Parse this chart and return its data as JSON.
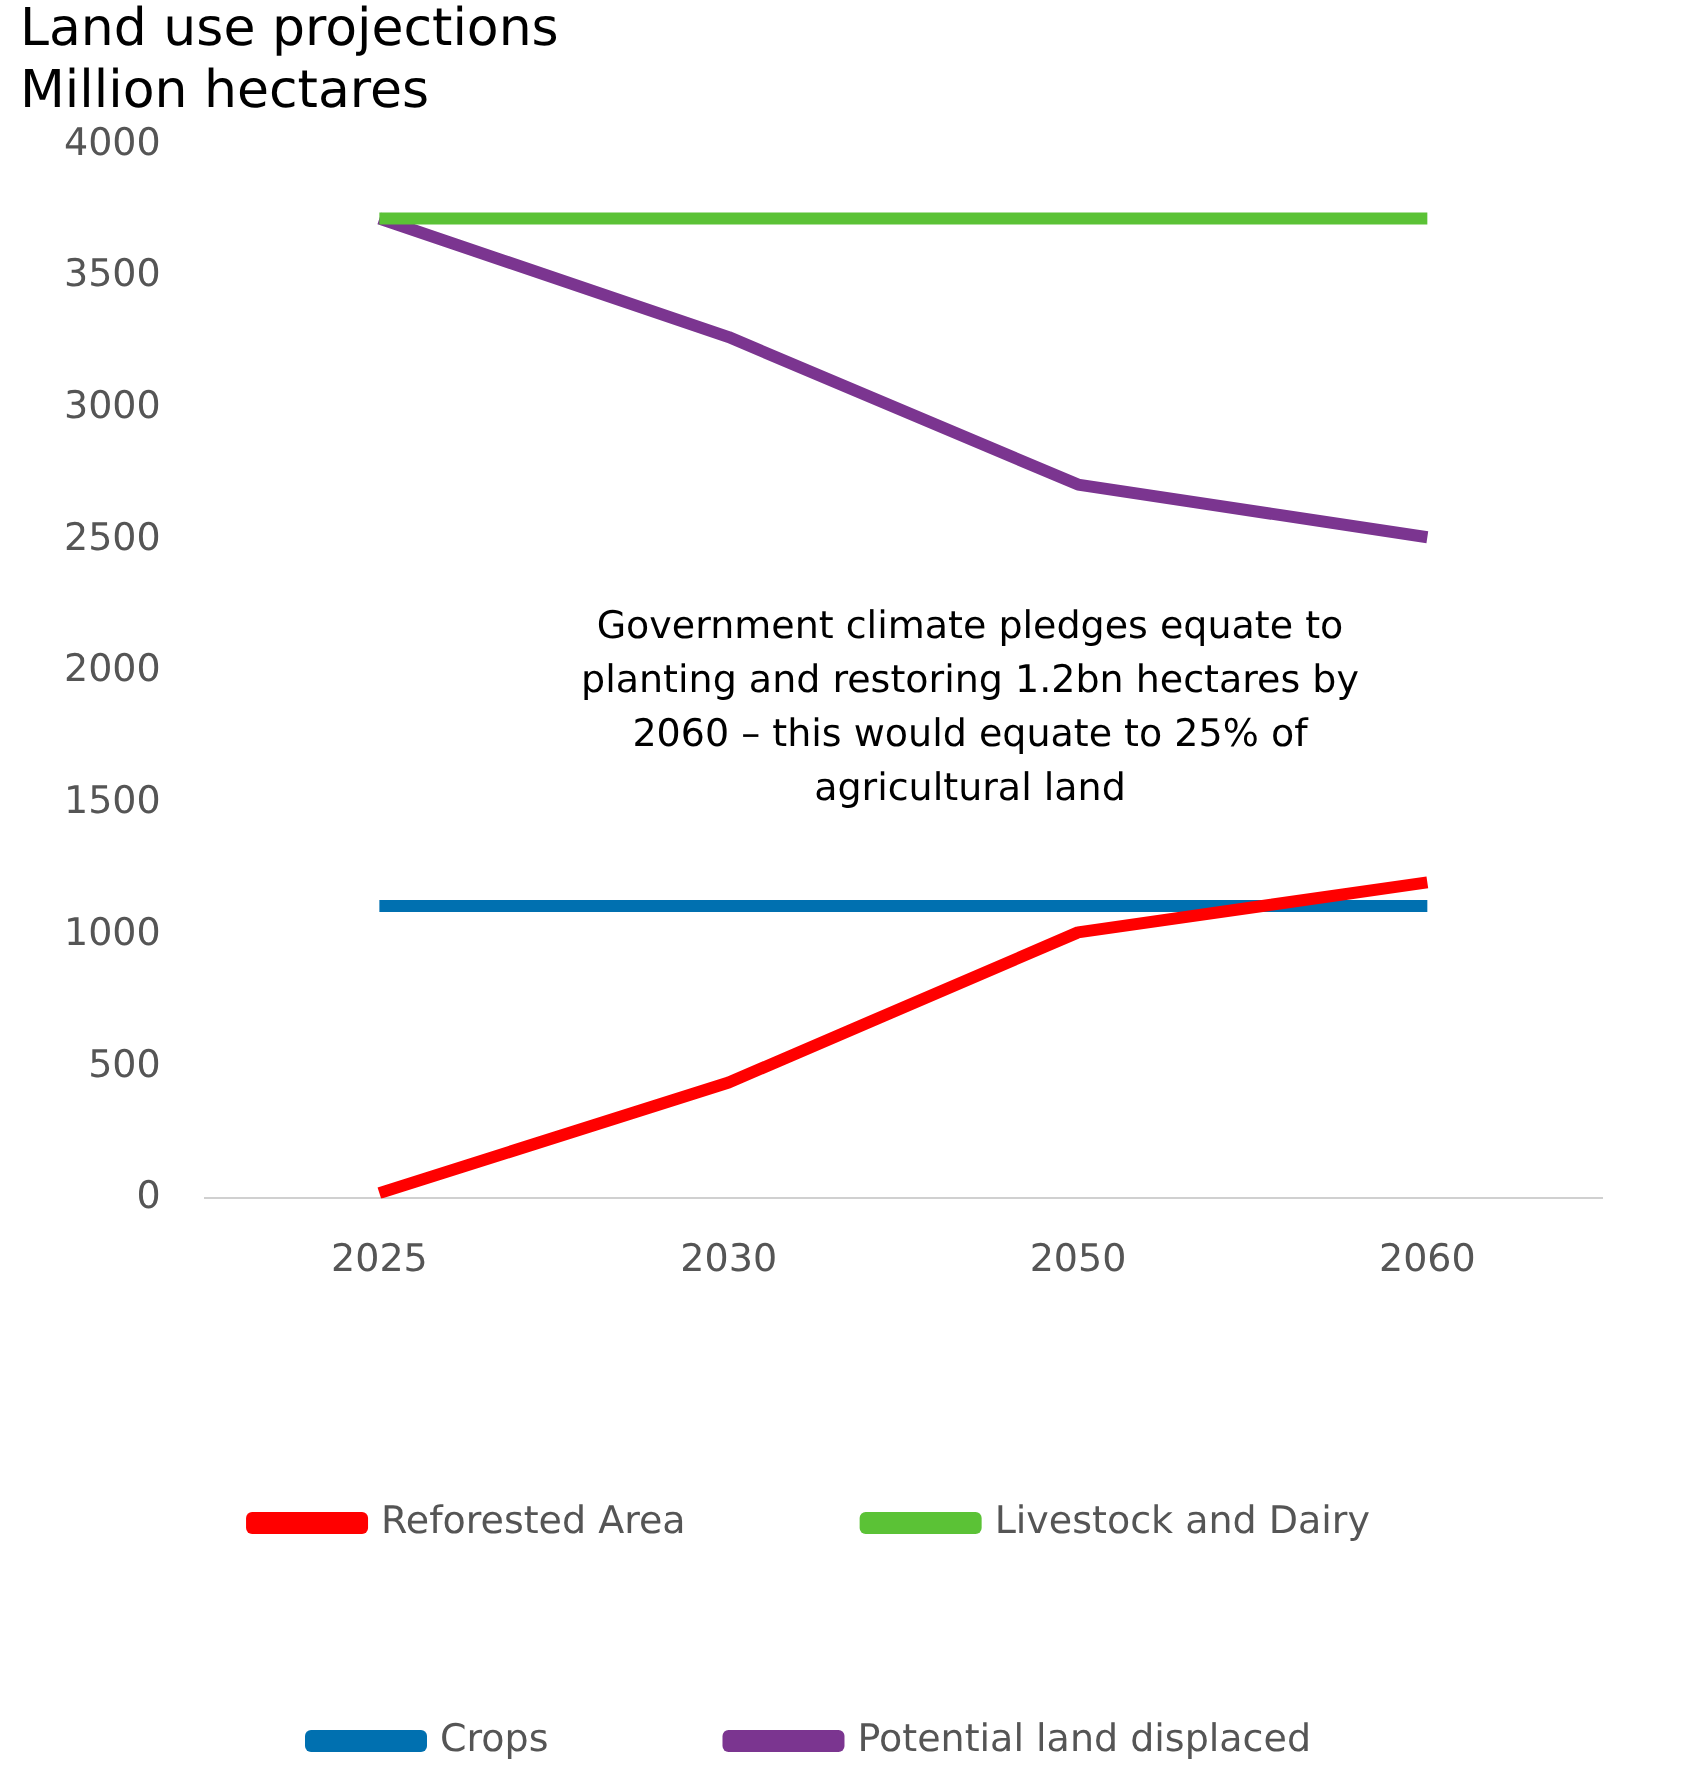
{
  "chart_data": {
    "type": "line",
    "title": "Land use projections",
    "subtitle": "Million hectares",
    "categories": [
      "2025",
      "2030",
      "2050",
      "2060"
    ],
    "series": [
      {
        "name": "Reforested Area",
        "color": "#ff0000",
        "values": [
          20,
          440,
          1010,
          1200
        ]
      },
      {
        "name": "Livestock and Dairy",
        "color": "#5bc236",
        "values": [
          3720,
          3720,
          3720,
          3720
        ]
      },
      {
        "name": "Crops",
        "color": "#0070b0",
        "values": [
          1110,
          1110,
          1110,
          1110
        ]
      },
      {
        "name": "Potential land displaced",
        "color": "#7b3590",
        "values": [
          3720,
          3270,
          2710,
          2510
        ]
      }
    ],
    "ylim": [
      0,
      4000
    ],
    "yticks": [
      0,
      500,
      1000,
      1500,
      2000,
      2500,
      3000,
      3500,
      4000
    ],
    "grid": false,
    "legend": "bottom",
    "marker": "none",
    "line_style": "solid",
    "annotations": [
      "Government climate pledges equate to planting and restoring 1.2bn hectares by 2060 – this would equate to 25% of agricultural land"
    ]
  }
}
